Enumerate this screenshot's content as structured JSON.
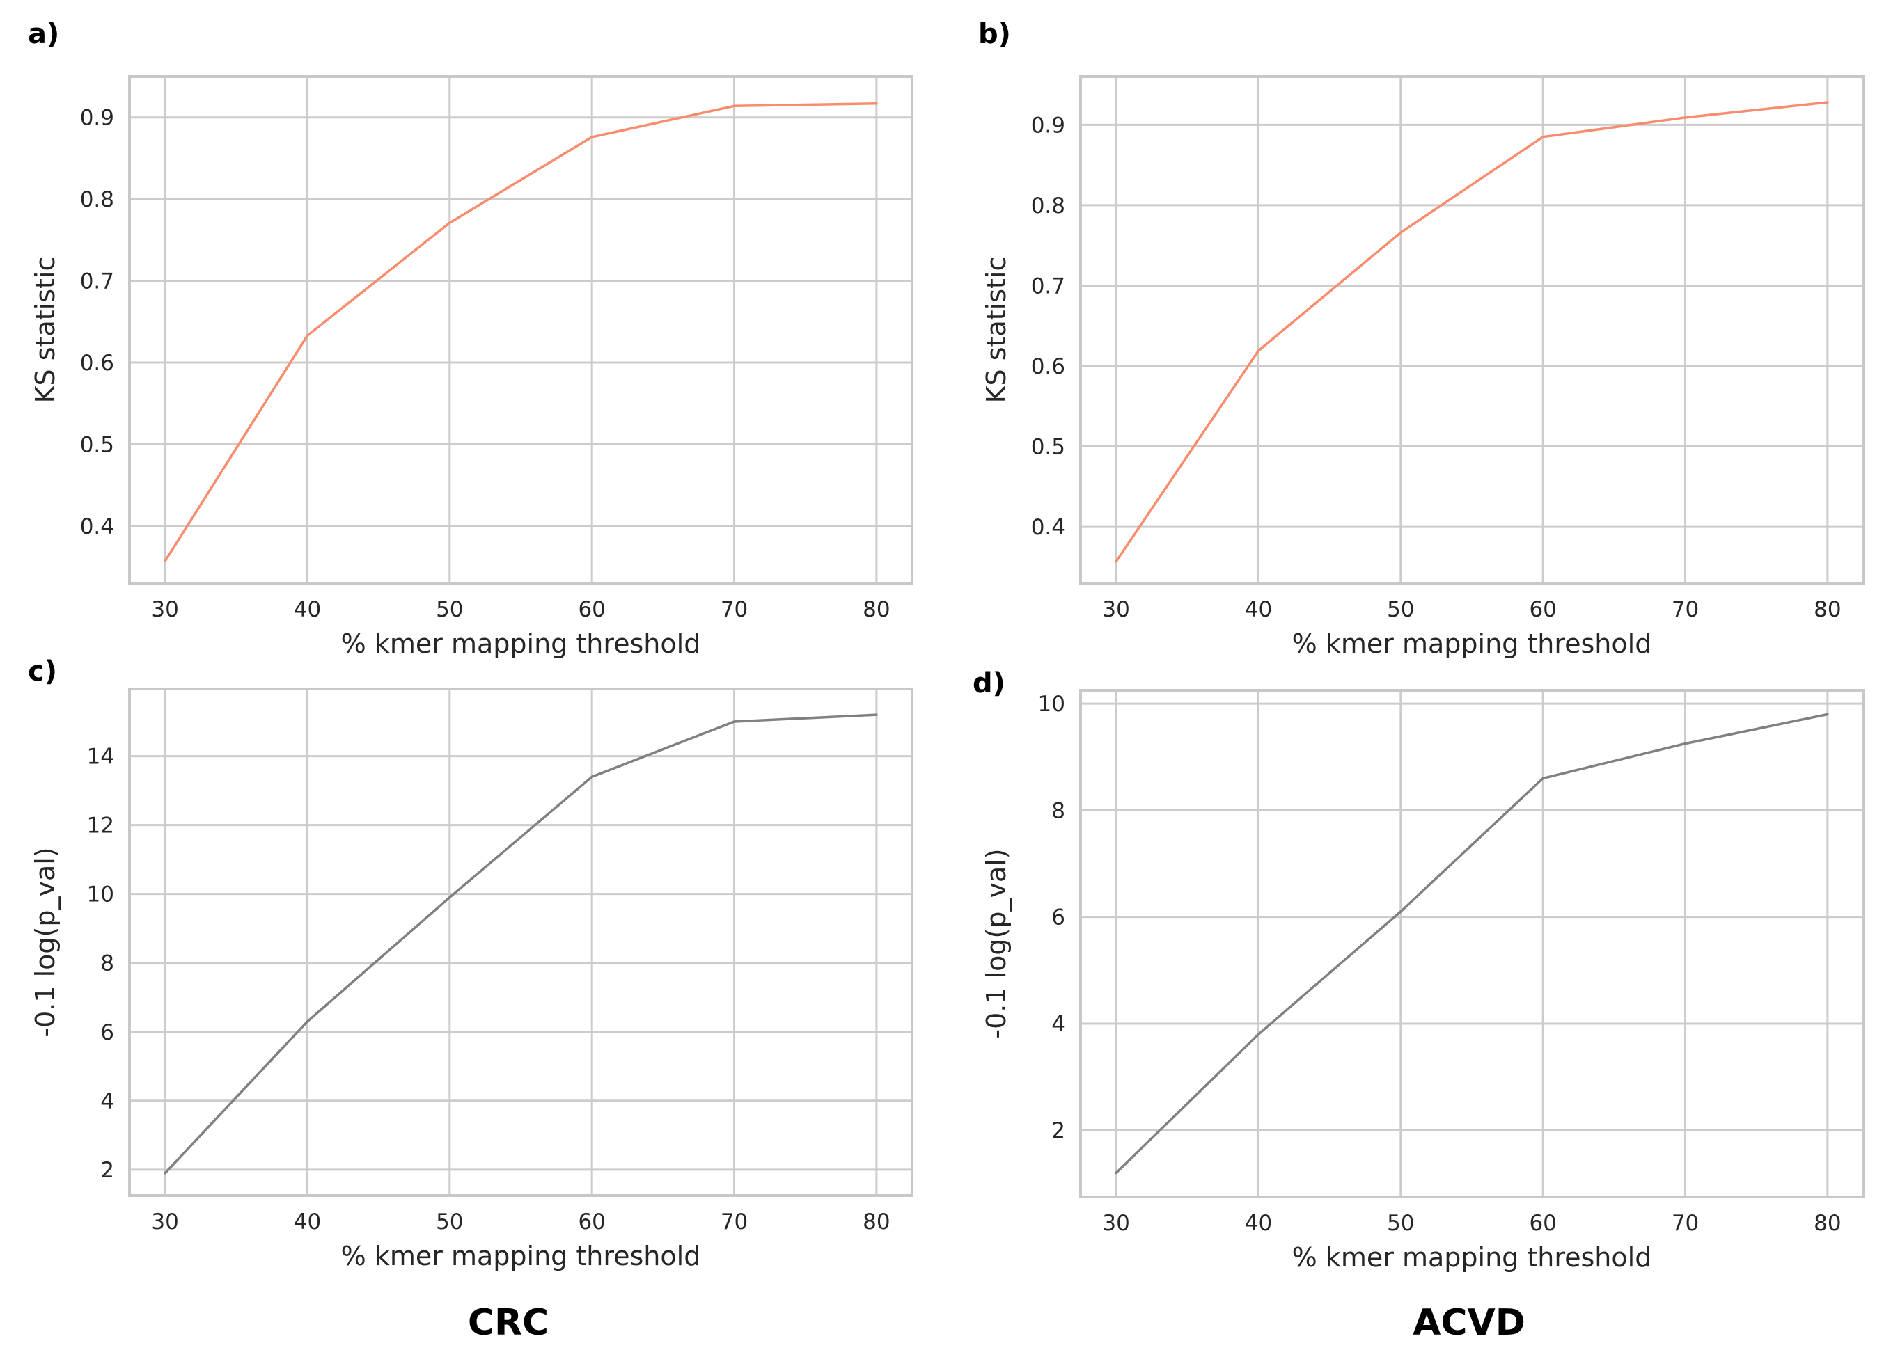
{
  "captions": {
    "left": "CRC",
    "right": "ACVD"
  },
  "colors": {
    "ks_line": "#fa8c6e",
    "pval_line": "#808080",
    "grid": "#cccccc",
    "frame": "#c8c8c8"
  },
  "chart_data": [
    {
      "id": "a",
      "panel_label": "a)",
      "type": "line",
      "xlabel": "% kmer mapping threshold",
      "ylabel": "KS statistic",
      "xticks": [
        "30",
        "40",
        "50",
        "60",
        "70",
        "80"
      ],
      "yticks": [
        "0.4",
        "0.5",
        "0.6",
        "0.7",
        "0.8",
        "0.9"
      ],
      "xlim": [
        27.5,
        82.5
      ],
      "ylim": [
        0.33,
        0.95
      ],
      "grid": true,
      "series": [
        {
          "name": "CRC KS statistic",
          "x": [
            30,
            40,
            50,
            60,
            70,
            80
          ],
          "y": [
            0.357,
            0.633,
            0.771,
            0.876,
            0.914,
            0.917
          ]
        }
      ]
    },
    {
      "id": "b",
      "panel_label": "b)",
      "type": "line",
      "xlabel": "% kmer mapping threshold",
      "ylabel": "KS statistic",
      "xticks": [
        "30",
        "40",
        "50",
        "60",
        "70",
        "80"
      ],
      "yticks": [
        "0.4",
        "0.5",
        "0.6",
        "0.7",
        "0.8",
        "0.9"
      ],
      "xlim": [
        27.5,
        82.5
      ],
      "ylim": [
        0.33,
        0.96
      ],
      "grid": true,
      "series": [
        {
          "name": "ACVD KS statistic",
          "x": [
            30,
            40,
            50,
            60,
            70,
            80
          ],
          "y": [
            0.357,
            0.619,
            0.766,
            0.885,
            0.909,
            0.928
          ]
        }
      ]
    },
    {
      "id": "c",
      "panel_label": "c)",
      "type": "line",
      "xlabel": "% kmer mapping threshold",
      "ylabel": "-0.1 log(p_val)",
      "xticks": [
        "30",
        "40",
        "50",
        "60",
        "70",
        "80"
      ],
      "yticks": [
        "2",
        "4",
        "6",
        "8",
        "10",
        "12",
        "14"
      ],
      "xlim": [
        27.5,
        82.5
      ],
      "ylim": [
        1.25,
        15.95
      ],
      "grid": true,
      "series": [
        {
          "name": "CRC -0.1 log(p_val)",
          "x": [
            30,
            40,
            50,
            60,
            70,
            80
          ],
          "y": [
            1.9,
            6.3,
            9.9,
            13.4,
            15.0,
            15.2
          ]
        }
      ]
    },
    {
      "id": "d",
      "panel_label": "d)",
      "type": "line",
      "xlabel": "% kmer mapping threshold",
      "ylabel": "-0.1 log(p_val)",
      "xticks": [
        "30",
        "40",
        "50",
        "60",
        "70",
        "80"
      ],
      "yticks": [
        "2",
        "4",
        "6",
        "8",
        "10"
      ],
      "xlim": [
        27.5,
        82.5
      ],
      "ylim": [
        0.75,
        10.25
      ],
      "grid": true,
      "series": [
        {
          "name": "ACVD -0.1 log(p_val)",
          "x": [
            30,
            40,
            50,
            60,
            70,
            80
          ],
          "y": [
            1.2,
            3.8,
            6.1,
            8.6,
            9.25,
            9.8
          ]
        }
      ]
    }
  ]
}
